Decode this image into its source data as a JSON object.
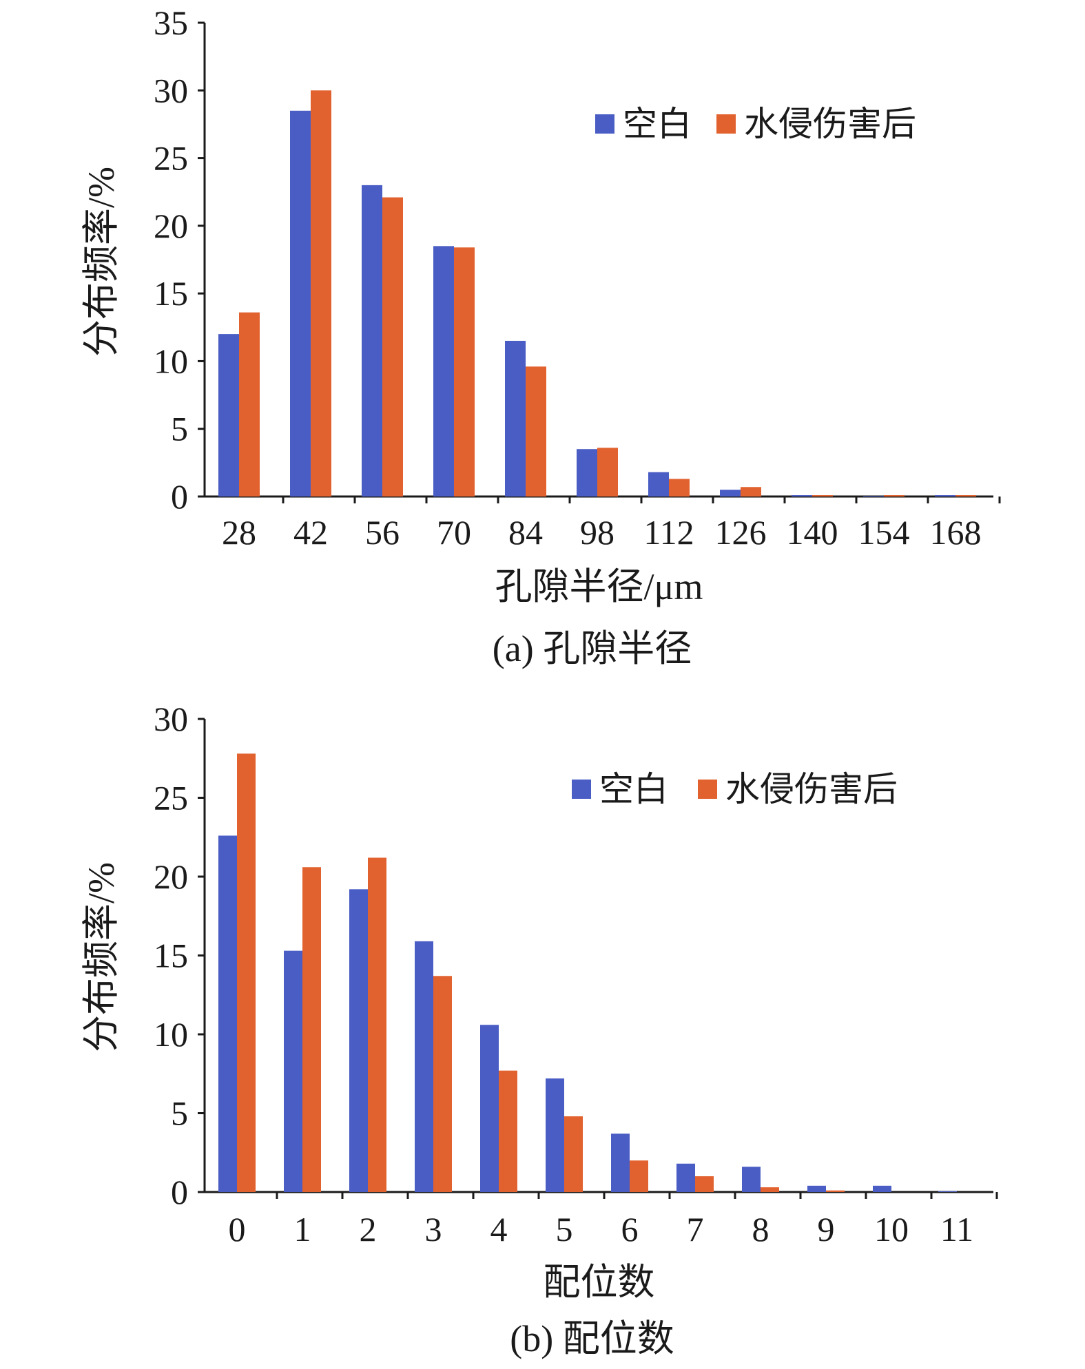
{
  "colors": {
    "blank": "#4a5dc4",
    "damaged": "#e2622f",
    "axis": "#1a1a1a"
  },
  "chart_data": [
    {
      "type": "bar",
      "caption": "(a) 孔隙半径",
      "xlabel": "孔隙半径/μm",
      "ylabel": "分布频率/%",
      "ylim": [
        0,
        35
      ],
      "yticks": [
        0,
        5,
        10,
        15,
        20,
        25,
        30,
        35
      ],
      "categories": [
        "28",
        "42",
        "56",
        "70",
        "84",
        "98",
        "112",
        "126",
        "140",
        "154",
        "168"
      ],
      "legend_position": "top-right",
      "series": [
        {
          "name": "空白",
          "color": "#4a5dc4",
          "values": [
            12.0,
            28.5,
            23.0,
            18.5,
            11.5,
            3.5,
            1.8,
            0.5,
            0.1,
            0.05,
            0.1
          ]
        },
        {
          "name": "水侵伤害后",
          "color": "#e2622f",
          "values": [
            13.6,
            30.0,
            22.1,
            18.4,
            9.6,
            3.6,
            1.3,
            0.7,
            0.1,
            0.1,
            0.1
          ]
        }
      ]
    },
    {
      "type": "bar",
      "caption": "(b) 配位数",
      "xlabel": "配位数",
      "ylabel": "分布频率/%",
      "ylim": [
        0,
        30
      ],
      "yticks": [
        0,
        5,
        10,
        15,
        20,
        25,
        30
      ],
      "categories": [
        "0",
        "1",
        "2",
        "3",
        "4",
        "5",
        "6",
        "7",
        "8",
        "9",
        "10",
        "11"
      ],
      "legend_position": "top-right",
      "series": [
        {
          "name": "空白",
          "color": "#4a5dc4",
          "values": [
            22.6,
            15.3,
            19.2,
            15.9,
            10.6,
            7.2,
            3.7,
            1.8,
            1.6,
            0.4,
            0.4,
            0.05
          ]
        },
        {
          "name": "水侵伤害后",
          "color": "#e2622f",
          "values": [
            27.8,
            20.6,
            21.2,
            13.7,
            7.7,
            4.8,
            2.0,
            1.0,
            0.3,
            0.1,
            0.0,
            0.0
          ]
        }
      ]
    }
  ]
}
